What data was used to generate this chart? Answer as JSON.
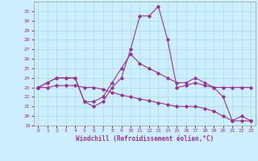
{
  "xlabel": "Windchill (Refroidissement éolien,°C)",
  "xlim": [
    -0.5,
    23.5
  ],
  "ylim": [
    19,
    32
  ],
  "yticks": [
    19,
    20,
    21,
    22,
    23,
    24,
    25,
    26,
    27,
    28,
    29,
    30,
    31
  ],
  "xticks": [
    0,
    1,
    2,
    3,
    4,
    5,
    6,
    7,
    8,
    9,
    10,
    11,
    12,
    13,
    14,
    15,
    16,
    17,
    18,
    19,
    20,
    21,
    22,
    23
  ],
  "bg_color": "#cceeff",
  "grid_color": "#aadddd",
  "line_color": "#993399",
  "line1_y": [
    23,
    23.5,
    24,
    24,
    24,
    21.5,
    21,
    21.5,
    23,
    24,
    27,
    30.5,
    30.5,
    31.5,
    28,
    23,
    23.2,
    23.5,
    23.2,
    23,
    22,
    19.5,
    20,
    19.5
  ],
  "line2_y": [
    23,
    23.5,
    24,
    24,
    24,
    21.5,
    21.5,
    22,
    23.5,
    25,
    26.5,
    25.5,
    25,
    24.5,
    24,
    23.5,
    23.5,
    24,
    23.5,
    23,
    23,
    23,
    23,
    23
  ],
  "line3_y": [
    23,
    23,
    23.2,
    23.2,
    23.2,
    23,
    23,
    22.8,
    22.5,
    22.2,
    22,
    21.8,
    21.6,
    21.4,
    21.2,
    21,
    21,
    21,
    20.8,
    20.5,
    20,
    19.5,
    19.5,
    19.5
  ]
}
